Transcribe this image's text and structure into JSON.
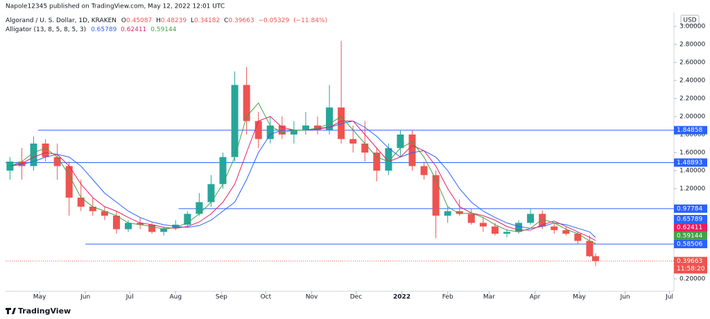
{
  "publisher": "Napole12345 published on TradingView.com, May 12, 2022 12:01 UTC",
  "brand": "TradingView",
  "chart_data": {
    "type": "candlestick",
    "title": "Algorand / U. S. Dollar, 1D, KRAKEN",
    "ohlc_letters": [
      "O",
      "H",
      "L",
      "C"
    ],
    "change": "−0.05329",
    "change_pct": "(−11.84%)",
    "indicator_label": "Alligator (13, 8, 5, 8, 5, 3)",
    "currency": "USD",
    "countdown": "11:58:20",
    "up_color": "#26a69a",
    "down_color": "#ef5350",
    "level_color": "#2962ff",
    "x": [
      3,
      11,
      19,
      27,
      35,
      43,
      51,
      59,
      67,
      75,
      83,
      91,
      99,
      107,
      115,
      123,
      131,
      139,
      147,
      155,
      163,
      171,
      179,
      187,
      195,
      203,
      211,
      219,
      227,
      235,
      243,
      251,
      259,
      267,
      275,
      283,
      291,
      299,
      307,
      315,
      323,
      331,
      339,
      347,
      355,
      363,
      371,
      379,
      387,
      395,
      399
    ],
    "open": [
      1.4,
      1.5,
      1.45,
      1.7,
      1.55,
      1.45,
      1.1,
      1.0,
      0.95,
      0.9,
      0.75,
      0.82,
      0.8,
      0.72,
      0.76,
      0.8,
      0.92,
      1.05,
      1.25,
      1.55,
      2.35,
      1.95,
      1.75,
      1.9,
      1.8,
      1.85,
      1.9,
      1.85,
      2.1,
      1.75,
      1.7,
      1.6,
      1.4,
      1.65,
      1.8,
      1.45,
      1.35,
      0.9,
      0.95,
      0.92,
      0.82,
      0.78,
      0.7,
      0.72,
      0.82,
      0.92,
      0.78,
      0.74,
      0.7,
      0.62,
      0.45087
    ],
    "high": [
      1.55,
      1.65,
      1.78,
      1.75,
      1.7,
      1.5,
      1.3,
      1.1,
      1.0,
      0.95,
      0.85,
      0.88,
      0.82,
      0.78,
      0.85,
      0.95,
      1.15,
      1.35,
      1.6,
      2.5,
      2.55,
      2.05,
      2.0,
      2.0,
      1.95,
      2.05,
      2.0,
      2.35,
      2.84,
      1.9,
      1.95,
      1.65,
      1.7,
      1.85,
      1.85,
      1.5,
      1.4,
      1.0,
      1.08,
      0.98,
      0.88,
      0.82,
      0.75,
      0.85,
      0.98,
      0.96,
      0.82,
      0.78,
      0.72,
      0.68,
      0.48239
    ],
    "low": [
      1.3,
      1.3,
      1.4,
      1.5,
      1.3,
      0.9,
      0.95,
      0.9,
      0.85,
      0.7,
      0.72,
      0.75,
      0.7,
      0.68,
      0.74,
      0.78,
      0.9,
      1.0,
      1.2,
      1.5,
      1.8,
      1.65,
      1.7,
      1.75,
      1.7,
      1.8,
      1.8,
      1.8,
      1.7,
      1.6,
      1.5,
      1.28,
      1.35,
      1.55,
      1.4,
      1.3,
      0.65,
      0.82,
      0.9,
      0.8,
      0.72,
      0.68,
      0.66,
      0.7,
      0.8,
      0.75,
      0.7,
      0.68,
      0.58,
      0.44,
      0.34182
    ],
    "close": [
      1.5,
      1.45,
      1.7,
      1.55,
      1.45,
      1.1,
      1.0,
      0.95,
      0.9,
      0.75,
      0.82,
      0.8,
      0.72,
      0.76,
      0.8,
      0.92,
      1.05,
      1.25,
      1.55,
      2.35,
      1.95,
      1.75,
      1.9,
      1.8,
      1.85,
      1.9,
      1.85,
      2.1,
      1.75,
      1.7,
      1.6,
      1.4,
      1.65,
      1.8,
      1.45,
      1.35,
      0.9,
      0.95,
      0.92,
      0.82,
      0.78,
      0.7,
      0.72,
      0.82,
      0.92,
      0.78,
      0.74,
      0.7,
      0.62,
      0.45,
      0.39663
    ],
    "series": [
      {
        "color": "#2962ff",
        "values": [
          1.45,
          1.47,
          1.5,
          1.55,
          1.58,
          1.55,
          1.45,
          1.3,
          1.15,
          1.05,
          0.95,
          0.88,
          0.83,
          0.8,
          0.78,
          0.77,
          0.79,
          0.85,
          0.95,
          1.05,
          1.3,
          1.6,
          1.8,
          1.85,
          1.85,
          1.85,
          1.87,
          1.88,
          1.92,
          1.95,
          1.88,
          1.78,
          1.65,
          1.55,
          1.6,
          1.62,
          1.55,
          1.4,
          1.2,
          1.05,
          0.95,
          0.88,
          0.82,
          0.78,
          0.76,
          0.78,
          0.82,
          0.8,
          0.76,
          0.72,
          0.65789
        ]
      },
      {
        "color": "#e91e63",
        "values": [
          1.45,
          1.48,
          1.55,
          1.6,
          1.58,
          1.45,
          1.25,
          1.1,
          1.0,
          0.95,
          0.88,
          0.82,
          0.8,
          0.77,
          0.76,
          0.78,
          0.83,
          0.92,
          1.05,
          1.25,
          1.6,
          1.95,
          2.0,
          1.88,
          1.85,
          1.85,
          1.86,
          1.88,
          1.95,
          1.95,
          1.8,
          1.65,
          1.5,
          1.55,
          1.68,
          1.62,
          1.45,
          1.2,
          1.0,
          0.93,
          0.9,
          0.85,
          0.78,
          0.74,
          0.74,
          0.8,
          0.84,
          0.78,
          0.72,
          0.66,
          0.62411
        ]
      },
      {
        "color": "#43a047",
        "values": [
          1.45,
          1.5,
          1.6,
          1.65,
          1.55,
          1.35,
          1.1,
          1.0,
          0.95,
          0.9,
          0.82,
          0.8,
          0.78,
          0.75,
          0.77,
          0.82,
          0.92,
          1.05,
          1.25,
          1.55,
          2.0,
          2.15,
          1.9,
          1.82,
          1.85,
          1.85,
          1.87,
          1.92,
          2.0,
          1.85,
          1.7,
          1.55,
          1.5,
          1.65,
          1.72,
          1.55,
          1.3,
          1.0,
          0.92,
          0.93,
          0.88,
          0.8,
          0.74,
          0.72,
          0.76,
          0.86,
          0.82,
          0.75,
          0.7,
          0.62,
          0.59144
        ]
      }
    ],
    "levels": [
      {
        "value": 1.84858,
        "x0": 22
      },
      {
        "value": 1.48893,
        "x0": 0
      },
      {
        "value": 0.97784,
        "x0": 117
      },
      {
        "value": 0.58506,
        "x0": 54
      }
    ],
    "xlim": [
      0,
      452
    ],
    "xticks": [
      {
        "value": 23,
        "label": "May"
      },
      {
        "value": 54,
        "label": "Jun"
      },
      {
        "value": 84,
        "label": "Jul"
      },
      {
        "value": 115,
        "label": "Aug"
      },
      {
        "value": 146,
        "label": "Sep"
      },
      {
        "value": 176,
        "label": "Oct"
      },
      {
        "value": 207,
        "label": "Nov"
      },
      {
        "value": 237,
        "label": "Dec"
      },
      {
        "value": 268,
        "label": "2022"
      },
      {
        "value": 299,
        "label": "Feb"
      },
      {
        "value": 327,
        "label": "Mar"
      },
      {
        "value": 358,
        "label": "Apr"
      },
      {
        "value": 388,
        "label": "May"
      },
      {
        "value": 419,
        "label": "Jun"
      },
      {
        "value": 449,
        "label": "Jul"
      }
    ],
    "ylim": [
      0.0615,
      3.154
    ],
    "yticks": [
      {
        "value": 0.2,
        "label": "0.20000"
      },
      {
        "value": 1.2,
        "label": "1.20000"
      },
      {
        "value": 1.4,
        "label": "1.40000"
      },
      {
        "value": 1.6,
        "label": "1.60000"
      },
      {
        "value": 1.8,
        "label": "1.80000"
      },
      {
        "value": 2.0,
        "label": "2.00000"
      },
      {
        "value": 2.2,
        "label": "2.20000"
      },
      {
        "value": 2.4,
        "label": "2.40000"
      },
      {
        "value": 2.6,
        "label": "2.60000"
      },
      {
        "value": 2.8,
        "label": "2.80000"
      },
      {
        "value": 3.0,
        "label": "3.00000"
      }
    ]
  }
}
